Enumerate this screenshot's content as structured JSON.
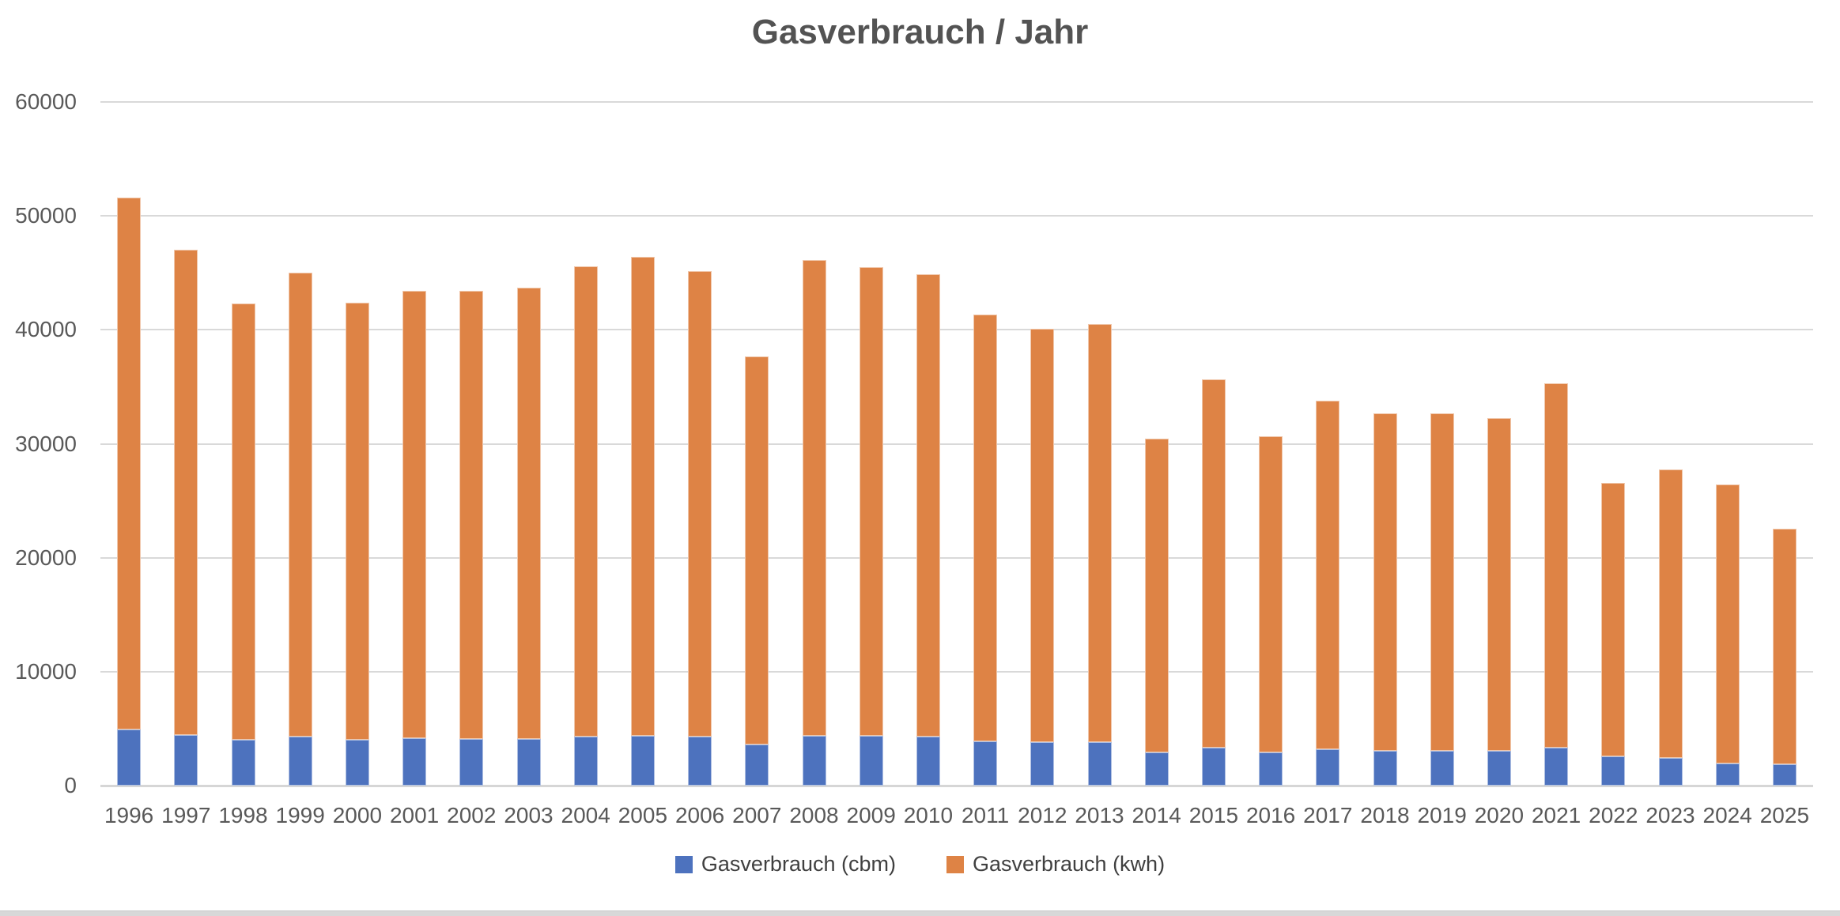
{
  "chart_data": {
    "type": "bar",
    "stacked": true,
    "title": "Gasverbrauch / Jahr",
    "categories": [
      "1996",
      "1997",
      "1998",
      "1999",
      "2000",
      "2001",
      "2002",
      "2003",
      "2004",
      "2005",
      "2006",
      "2007",
      "2008",
      "2009",
      "2010",
      "2011",
      "2012",
      "2013",
      "2014",
      "2015",
      "2016",
      "2017",
      "2018",
      "2019",
      "2020",
      "2021",
      "2022",
      "2023",
      "2024",
      "2025"
    ],
    "series": [
      {
        "name": "Gasverbrauch (cbm)",
        "color": "#4d72be",
        "values": [
          4900,
          4450,
          4000,
          4300,
          4000,
          4150,
          4100,
          4100,
          4300,
          4400,
          4300,
          3600,
          4400,
          4350,
          4300,
          3900,
          3800,
          3850,
          2900,
          3350,
          2900,
          3200,
          3050,
          3050,
          3050,
          3350,
          2550,
          2400,
          1950,
          1900
        ]
      },
      {
        "name": "Gasverbrauch (kwh)",
        "color": "#de8345",
        "values": [
          46700,
          42550,
          38300,
          40700,
          38400,
          39250,
          39300,
          39600,
          41250,
          42000,
          40850,
          34100,
          41750,
          41150,
          40600,
          37450,
          36300,
          36650,
          27550,
          32300,
          27750,
          30550,
          29600,
          29600,
          29200,
          31950,
          24050,
          25350,
          24450,
          20650
        ]
      }
    ],
    "y_axis": {
      "min": 0,
      "max": 60000,
      "ticks": [
        0,
        10000,
        20000,
        30000,
        40000,
        50000,
        60000
      ]
    },
    "xlabel": "",
    "ylabel": "",
    "gridlines": true,
    "gridline_color": "#d9d9d9",
    "axis_text_color": "#595959",
    "title_color": "#535353",
    "legend_position": "bottom"
  }
}
